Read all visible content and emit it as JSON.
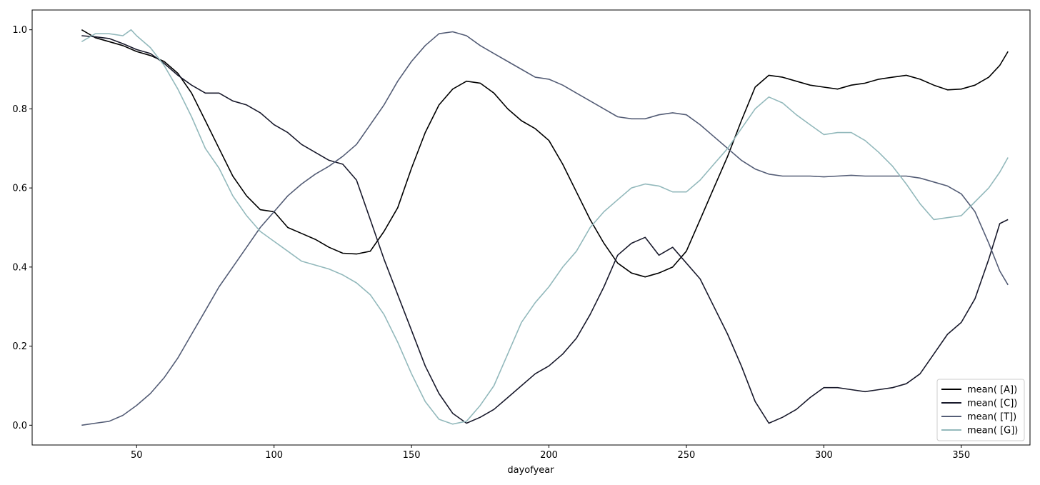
{
  "chart_data": {
    "type": "line",
    "title": "",
    "xlabel": "dayofyear",
    "ylabel": "",
    "xlim": [
      12,
      375
    ],
    "ylim": [
      -0.05,
      1.05
    ],
    "xticks": [
      50,
      100,
      150,
      200,
      250,
      300,
      350
    ],
    "yticks": [
      0.0,
      0.2,
      0.4,
      0.6,
      0.8,
      1.0
    ],
    "xtick_labels": [
      "50",
      "100",
      "150",
      "200",
      "250",
      "300",
      "350"
    ],
    "ytick_labels": [
      "0.0",
      "0.2",
      "0.4",
      "0.6",
      "0.8",
      "1.0"
    ],
    "grid": false,
    "legend_position": "bottom-right",
    "series": [
      {
        "name": "mean( [A])",
        "color": "#000000",
        "points": [
          [
            30,
            1.0
          ],
          [
            35,
            0.98
          ],
          [
            40,
            0.97
          ],
          [
            45,
            0.96
          ],
          [
            50,
            0.945
          ],
          [
            55,
            0.935
          ],
          [
            60,
            0.92
          ],
          [
            65,
            0.89
          ],
          [
            70,
            0.84
          ],
          [
            75,
            0.77
          ],
          [
            80,
            0.7
          ],
          [
            85,
            0.63
          ],
          [
            90,
            0.58
          ],
          [
            95,
            0.545
          ],
          [
            100,
            0.54
          ],
          [
            105,
            0.5
          ],
          [
            110,
            0.485
          ],
          [
            115,
            0.47
          ],
          [
            120,
            0.45
          ],
          [
            125,
            0.435
          ],
          [
            130,
            0.433
          ],
          [
            135,
            0.44
          ],
          [
            140,
            0.49
          ],
          [
            145,
            0.55
          ],
          [
            150,
            0.65
          ],
          [
            155,
            0.74
          ],
          [
            160,
            0.81
          ],
          [
            165,
            0.85
          ],
          [
            170,
            0.87
          ],
          [
            175,
            0.865
          ],
          [
            180,
            0.84
          ],
          [
            185,
            0.8
          ],
          [
            190,
            0.77
          ],
          [
            195,
            0.75
          ],
          [
            200,
            0.72
          ],
          [
            205,
            0.66
          ],
          [
            210,
            0.59
          ],
          [
            215,
            0.52
          ],
          [
            220,
            0.46
          ],
          [
            225,
            0.41
          ],
          [
            230,
            0.385
          ],
          [
            235,
            0.375
          ],
          [
            240,
            0.385
          ],
          [
            245,
            0.4
          ],
          [
            250,
            0.44
          ],
          [
            255,
            0.52
          ],
          [
            260,
            0.6
          ],
          [
            265,
            0.68
          ],
          [
            270,
            0.77
          ],
          [
            275,
            0.855
          ],
          [
            280,
            0.885
          ],
          [
            285,
            0.88
          ],
          [
            290,
            0.87
          ],
          [
            295,
            0.86
          ],
          [
            300,
            0.855
          ],
          [
            305,
            0.85
          ],
          [
            310,
            0.86
          ],
          [
            315,
            0.865
          ],
          [
            320,
            0.875
          ],
          [
            325,
            0.88
          ],
          [
            330,
            0.885
          ],
          [
            335,
            0.875
          ],
          [
            340,
            0.86
          ],
          [
            345,
            0.848
          ],
          [
            350,
            0.85
          ],
          [
            355,
            0.86
          ],
          [
            360,
            0.88
          ],
          [
            364,
            0.91
          ],
          [
            367,
            0.945
          ]
        ]
      },
      {
        "name": "mean( [C])",
        "color": "#191a2c",
        "points": [
          [
            30,
            0.985
          ],
          [
            35,
            0.982
          ],
          [
            40,
            0.978
          ],
          [
            45,
            0.965
          ],
          [
            50,
            0.95
          ],
          [
            55,
            0.94
          ],
          [
            60,
            0.915
          ],
          [
            65,
            0.885
          ],
          [
            70,
            0.86
          ],
          [
            75,
            0.84
          ],
          [
            80,
            0.84
          ],
          [
            85,
            0.82
          ],
          [
            90,
            0.81
          ],
          [
            95,
            0.79
          ],
          [
            100,
            0.76
          ],
          [
            105,
            0.74
          ],
          [
            110,
            0.71
          ],
          [
            115,
            0.69
          ],
          [
            120,
            0.67
          ],
          [
            125,
            0.66
          ],
          [
            130,
            0.62
          ],
          [
            135,
            0.52
          ],
          [
            140,
            0.42
          ],
          [
            145,
            0.33
          ],
          [
            150,
            0.24
          ],
          [
            155,
            0.15
          ],
          [
            160,
            0.08
          ],
          [
            165,
            0.03
          ],
          [
            170,
            0.005
          ],
          [
            175,
            0.02
          ],
          [
            180,
            0.04
          ],
          [
            185,
            0.07
          ],
          [
            190,
            0.1
          ],
          [
            195,
            0.13
          ],
          [
            200,
            0.15
          ],
          [
            205,
            0.18
          ],
          [
            210,
            0.22
          ],
          [
            215,
            0.28
          ],
          [
            220,
            0.35
          ],
          [
            225,
            0.43
          ],
          [
            230,
            0.46
          ],
          [
            235,
            0.475
          ],
          [
            240,
            0.43
          ],
          [
            245,
            0.45
          ],
          [
            250,
            0.41
          ],
          [
            255,
            0.37
          ],
          [
            260,
            0.3
          ],
          [
            265,
            0.23
          ],
          [
            270,
            0.15
          ],
          [
            275,
            0.06
          ],
          [
            280,
            0.005
          ],
          [
            285,
            0.02
          ],
          [
            290,
            0.04
          ],
          [
            295,
            0.07
          ],
          [
            300,
            0.095
          ],
          [
            305,
            0.095
          ],
          [
            310,
            0.09
          ],
          [
            315,
            0.085
          ],
          [
            320,
            0.09
          ],
          [
            325,
            0.095
          ],
          [
            330,
            0.105
          ],
          [
            335,
            0.13
          ],
          [
            340,
            0.18
          ],
          [
            345,
            0.23
          ],
          [
            350,
            0.26
          ],
          [
            355,
            0.32
          ],
          [
            360,
            0.42
          ],
          [
            364,
            0.51
          ],
          [
            367,
            0.52
          ]
        ]
      },
      {
        "name": "mean( [T])",
        "color": "#545d76",
        "points": [
          [
            30,
            0.0
          ],
          [
            35,
            0.005
          ],
          [
            40,
            0.01
          ],
          [
            45,
            0.025
          ],
          [
            50,
            0.05
          ],
          [
            55,
            0.08
          ],
          [
            60,
            0.12
          ],
          [
            65,
            0.17
          ],
          [
            70,
            0.23
          ],
          [
            75,
            0.29
          ],
          [
            80,
            0.35
          ],
          [
            85,
            0.4
          ],
          [
            90,
            0.45
          ],
          [
            95,
            0.5
          ],
          [
            100,
            0.54
          ],
          [
            105,
            0.58
          ],
          [
            110,
            0.61
          ],
          [
            115,
            0.635
          ],
          [
            120,
            0.655
          ],
          [
            125,
            0.68
          ],
          [
            130,
            0.71
          ],
          [
            135,
            0.76
          ],
          [
            140,
            0.81
          ],
          [
            145,
            0.87
          ],
          [
            150,
            0.92
          ],
          [
            155,
            0.96
          ],
          [
            160,
            0.99
          ],
          [
            165,
            0.995
          ],
          [
            170,
            0.985
          ],
          [
            175,
            0.96
          ],
          [
            180,
            0.94
          ],
          [
            185,
            0.92
          ],
          [
            190,
            0.9
          ],
          [
            195,
            0.88
          ],
          [
            200,
            0.875
          ],
          [
            205,
            0.86
          ],
          [
            210,
            0.84
          ],
          [
            215,
            0.82
          ],
          [
            220,
            0.8
          ],
          [
            225,
            0.78
          ],
          [
            230,
            0.775
          ],
          [
            235,
            0.775
          ],
          [
            240,
            0.785
          ],
          [
            245,
            0.79
          ],
          [
            250,
            0.785
          ],
          [
            255,
            0.76
          ],
          [
            260,
            0.73
          ],
          [
            265,
            0.7
          ],
          [
            270,
            0.67
          ],
          [
            275,
            0.648
          ],
          [
            280,
            0.635
          ],
          [
            285,
            0.63
          ],
          [
            290,
            0.63
          ],
          [
            295,
            0.63
          ],
          [
            300,
            0.628
          ],
          [
            305,
            0.63
          ],
          [
            310,
            0.632
          ],
          [
            315,
            0.63
          ],
          [
            320,
            0.63
          ],
          [
            325,
            0.63
          ],
          [
            330,
            0.63
          ],
          [
            335,
            0.625
          ],
          [
            340,
            0.615
          ],
          [
            345,
            0.605
          ],
          [
            350,
            0.585
          ],
          [
            355,
            0.54
          ],
          [
            360,
            0.46
          ],
          [
            364,
            0.39
          ],
          [
            367,
            0.355
          ]
        ]
      },
      {
        "name": "mean( [G])",
        "color": "#93b9bc",
        "points": [
          [
            30,
            0.97
          ],
          [
            35,
            0.99
          ],
          [
            40,
            0.99
          ],
          [
            45,
            0.985
          ],
          [
            48,
            1.0
          ],
          [
            50,
            0.985
          ],
          [
            55,
            0.955
          ],
          [
            60,
            0.91
          ],
          [
            65,
            0.85
          ],
          [
            70,
            0.78
          ],
          [
            75,
            0.7
          ],
          [
            80,
            0.65
          ],
          [
            85,
            0.58
          ],
          [
            90,
            0.53
          ],
          [
            95,
            0.49
          ],
          [
            100,
            0.465
          ],
          [
            105,
            0.44
          ],
          [
            110,
            0.415
          ],
          [
            115,
            0.405
          ],
          [
            120,
            0.395
          ],
          [
            125,
            0.38
          ],
          [
            130,
            0.36
          ],
          [
            135,
            0.33
          ],
          [
            140,
            0.28
          ],
          [
            145,
            0.21
          ],
          [
            150,
            0.13
          ],
          [
            155,
            0.06
          ],
          [
            160,
            0.015
          ],
          [
            165,
            0.003
          ],
          [
            170,
            0.01
          ],
          [
            175,
            0.05
          ],
          [
            180,
            0.1
          ],
          [
            185,
            0.18
          ],
          [
            190,
            0.26
          ],
          [
            195,
            0.31
          ],
          [
            200,
            0.35
          ],
          [
            205,
            0.4
          ],
          [
            210,
            0.44
          ],
          [
            215,
            0.5
          ],
          [
            220,
            0.54
          ],
          [
            225,
            0.57
          ],
          [
            230,
            0.6
          ],
          [
            235,
            0.61
          ],
          [
            240,
            0.605
          ],
          [
            245,
            0.59
          ],
          [
            250,
            0.59
          ],
          [
            255,
            0.62
          ],
          [
            260,
            0.66
          ],
          [
            265,
            0.7
          ],
          [
            270,
            0.75
          ],
          [
            275,
            0.8
          ],
          [
            280,
            0.83
          ],
          [
            285,
            0.815
          ],
          [
            290,
            0.785
          ],
          [
            295,
            0.76
          ],
          [
            300,
            0.735
          ],
          [
            305,
            0.74
          ],
          [
            310,
            0.74
          ],
          [
            315,
            0.72
          ],
          [
            320,
            0.69
          ],
          [
            325,
            0.655
          ],
          [
            330,
            0.61
          ],
          [
            335,
            0.56
          ],
          [
            340,
            0.52
          ],
          [
            345,
            0.525
          ],
          [
            350,
            0.53
          ],
          [
            355,
            0.565
          ],
          [
            360,
            0.6
          ],
          [
            364,
            0.64
          ],
          [
            367,
            0.677
          ]
        ]
      }
    ]
  }
}
